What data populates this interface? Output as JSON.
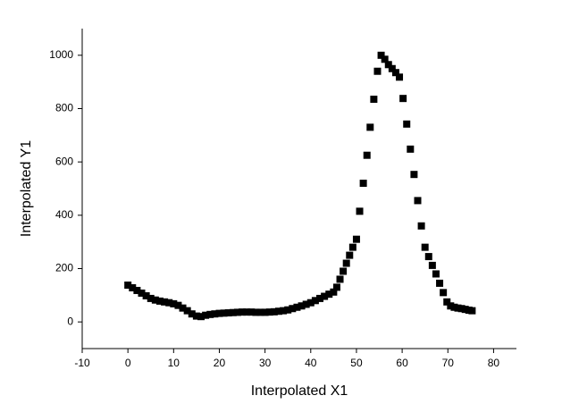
{
  "chart_data": {
    "type": "scatter",
    "x_label": "Interpolated X1",
    "y_label": "Interpolated Y1",
    "xlim": [
      -10,
      85
    ],
    "ylim": [
      -100,
      1100
    ],
    "xticks": [
      -10,
      0,
      10,
      20,
      30,
      40,
      50,
      60,
      70,
      80
    ],
    "yticks": [
      0,
      200,
      400,
      600,
      800,
      1000
    ],
    "color": "#000000",
    "x": [
      0,
      1,
      2,
      3,
      4,
      5,
      6,
      7,
      8,
      9,
      10,
      11,
      12,
      13,
      14,
      15,
      16,
      17,
      18,
      19,
      20,
      21,
      22,
      23,
      24,
      25,
      26,
      27,
      28,
      29,
      30,
      31,
      32,
      33,
      34,
      35,
      36,
      37,
      38,
      39,
      40,
      41,
      42,
      43,
      44,
      45,
      45.7,
      46.4,
      47.1,
      47.8,
      48.5,
      49.2,
      50,
      50.7,
      51.5,
      52.3,
      53,
      53.8,
      54.6,
      55.4,
      56.2,
      57,
      57.8,
      58.6,
      59.4,
      60.2,
      61,
      61.8,
      62.6,
      63.4,
      64.2,
      65,
      65.8,
      66.6,
      67.4,
      68.2,
      69,
      69.8,
      70.6,
      71.4,
      72.2,
      73,
      73.8,
      74.6,
      75.3
    ],
    "values": [
      138,
      128,
      118,
      108,
      98,
      88,
      82,
      78,
      75,
      72,
      68,
      62,
      52,
      42,
      30,
      22,
      20,
      25,
      28,
      30,
      32,
      33,
      34,
      35,
      36,
      37,
      37,
      37,
      36,
      36,
      36,
      37,
      38,
      40,
      42,
      45,
      50,
      55,
      60,
      66,
      72,
      80,
      88,
      96,
      104,
      112,
      130,
      160,
      190,
      220,
      250,
      280,
      310,
      415,
      520,
      625,
      730,
      835,
      940,
      1000,
      985,
      965,
      950,
      935,
      918,
      838,
      742,
      648,
      553,
      455,
      360,
      280,
      245,
      212,
      180,
      145,
      110,
      75,
      60,
      55,
      52,
      50,
      47,
      44,
      42
    ]
  }
}
